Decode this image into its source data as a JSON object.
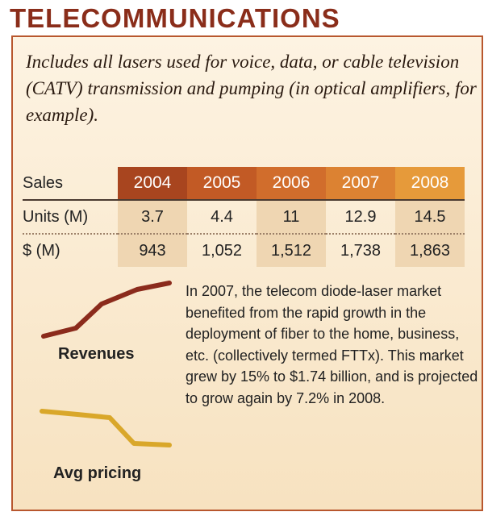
{
  "title": "TELECOMMUNICATIONS",
  "intro": "Includes all lasers used for voice, data, or cable television (CATV) transmission and pumping (in optical amplifiers, for example).",
  "table": {
    "header": "Sales",
    "years": [
      "2004",
      "2005",
      "2006",
      "2007",
      "2008"
    ],
    "rows": [
      {
        "label": "Units (M)",
        "values": [
          "3.7",
          "4.4",
          "11",
          "12.9",
          "14.5"
        ]
      },
      {
        "label": "$ (M)",
        "values": [
          "943",
          "1,052",
          "1,512",
          "1,738",
          "1,863"
        ]
      }
    ]
  },
  "trends": {
    "revenues_label": "Revenues",
    "pricing_label": "Avg pricing",
    "revenues_color": "#8b2b1c",
    "pricing_color": "#d9a72a"
  },
  "description": "In 2007, the telecom diode-laser market benefited from the rapid growth in the deployment of fiber to the home, business, etc. (collectively termed FTTx). This market grew by 15% to $1.74 billion, and is projected to grow again by 7.2% in 2008.",
  "colors": {
    "title": "#8a2d1a",
    "panel_border": "#b8572e",
    "shade": "#efd6b2"
  }
}
